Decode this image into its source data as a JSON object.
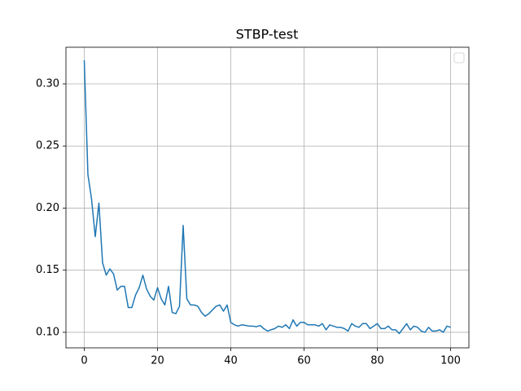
{
  "chart_data": {
    "type": "line",
    "title": "STBP-test",
    "x": [
      0,
      1,
      2,
      3,
      4,
      5,
      6,
      7,
      8,
      9,
      10,
      11,
      12,
      13,
      14,
      15,
      16,
      17,
      18,
      19,
      20,
      21,
      22,
      23,
      24,
      25,
      26,
      27,
      28,
      29,
      30,
      31,
      32,
      33,
      34,
      35,
      36,
      37,
      38,
      39,
      40,
      41,
      42,
      43,
      44,
      45,
      46,
      47,
      48,
      49,
      50,
      51,
      52,
      53,
      54,
      55,
      56,
      57,
      58,
      59,
      60,
      61,
      62,
      63,
      64,
      65,
      66,
      67,
      68,
      69,
      70,
      71,
      72,
      73,
      74,
      75,
      76,
      77,
      78,
      79,
      80,
      81,
      82,
      83,
      84,
      85,
      86,
      87,
      88,
      89,
      90,
      91,
      92,
      93,
      94,
      95,
      96,
      97,
      98,
      99,
      100
    ],
    "values": [
      0.319,
      0.227,
      0.207,
      0.177,
      0.204,
      0.156,
      0.146,
      0.151,
      0.147,
      0.134,
      0.137,
      0.137,
      0.12,
      0.12,
      0.13,
      0.136,
      0.146,
      0.135,
      0.129,
      0.126,
      0.136,
      0.127,
      0.122,
      0.137,
      0.116,
      0.115,
      0.121,
      0.186,
      0.127,
      0.122,
      0.122,
      0.121,
      0.116,
      0.113,
      0.115,
      0.118,
      0.121,
      0.122,
      0.117,
      0.122,
      0.108,
      0.106,
      0.105,
      0.106,
      0.1055,
      0.105,
      0.105,
      0.1045,
      0.1055,
      0.103,
      0.101,
      0.102,
      0.103,
      0.105,
      0.104,
      0.106,
      0.103,
      0.11,
      0.105,
      0.108,
      0.108,
      0.106,
      0.106,
      0.106,
      0.105,
      0.107,
      0.102,
      0.106,
      0.105,
      0.104,
      0.104,
      0.103,
      0.101,
      0.107,
      0.105,
      0.104,
      0.107,
      0.107,
      0.103,
      0.105,
      0.107,
      0.103,
      0.103,
      0.105,
      0.102,
      0.102,
      0.099,
      0.103,
      0.107,
      0.102,
      0.105,
      0.104,
      0.101,
      0.1,
      0.104,
      0.101,
      0.101,
      0.102,
      0.1,
      0.105,
      0.104
    ],
    "color": "#1f77b4",
    "xlim": [
      -5,
      105
    ],
    "xticks": [
      0,
      20,
      40,
      60,
      80,
      100
    ],
    "ylim": [
      0.0875,
      0.3295
    ],
    "yticks": [
      {
        "value": 0.1,
        "label": "0.10"
      },
      0.15,
      {
        "value": 0.2,
        "label": "0.20"
      },
      0.25,
      {
        "value": 0.3,
        "label": "0.30"
      }
    ],
    "grid": true
  }
}
